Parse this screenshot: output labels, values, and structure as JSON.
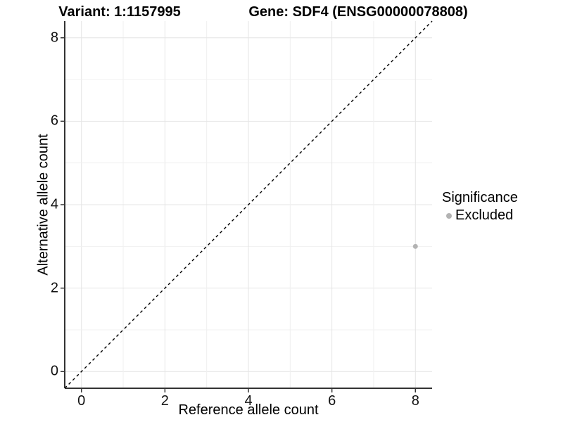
{
  "titles": {
    "title_left": "Variant: 1:1157995",
    "title_right": "Gene: SDF4 (ENSG00000078808)"
  },
  "chart_data": {
    "type": "scatter",
    "title": "Variant: 1:1157995   Gene: SDF4 (ENSG00000078808)",
    "xlabel": "Reference allele count",
    "ylabel": "Alternative allele count",
    "xlim": [
      -0.4,
      8.4
    ],
    "ylim": [
      -0.4,
      8.4
    ],
    "x_ticks": [
      0,
      2,
      4,
      6,
      8
    ],
    "y_ticks": [
      0,
      2,
      4,
      6,
      8
    ],
    "grid": {
      "min": 0,
      "max": 8,
      "interval": 1
    },
    "points": [
      {
        "x": 8,
        "y": 3,
        "significance": "Excluded"
      }
    ],
    "reference_line": {
      "type": "abline",
      "slope": 1,
      "intercept": 0,
      "style": "dashed"
    },
    "legend": {
      "title": "Significance",
      "position": "right",
      "items": [
        {
          "label": "Excluded",
          "color": "#b3b3b3"
        }
      ]
    },
    "colors": {
      "point_excluded": "#b3b3b3",
      "grid_major": "#e4e4e4",
      "grid_minor": "#f0f0f0",
      "axis_line": "#333333",
      "tick_mark": "#333333",
      "dashed_line": "#000000",
      "background": "#ffffff"
    }
  }
}
